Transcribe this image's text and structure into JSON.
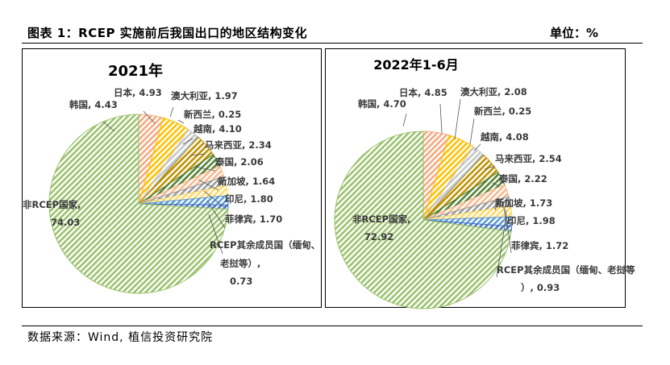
{
  "header": {
    "title": "图表 1：RCEP 实施前后我国出口的地区结构变化",
    "unit": "单位：%"
  },
  "footer": {
    "source": "数据来源：Wind, 植信投资研究院"
  },
  "colors": {
    "非RCEP国家": "#9bc26d",
    "韩国": "#f4a981",
    "日本": "#ffc000",
    "澳大利亚": "#c7c7c7",
    "新西兰": "#9dc3e6",
    "越南": "#bf9000",
    "马来西亚": "#548235",
    "泰国": "#f7b98e",
    "新加坡": "#9b9b9b",
    "印尼": "#ffd966",
    "菲律宾": "#5b9bd5",
    "RCEP其余成员国": "#4472c4"
  },
  "chart_data": [
    {
      "type": "pie",
      "title": "2021年",
      "labels": [
        "韩国",
        "日本",
        "澳大利亚",
        "新西兰",
        "越南",
        "马来西亚",
        "泰国",
        "新加坡",
        "印尼",
        "菲律宾",
        "RCEP其余成员国（缅甸、老挝等）",
        "非RCEP国家"
      ],
      "values": [
        4.43,
        4.93,
        1.97,
        0.25,
        4.1,
        2.34,
        2.06,
        1.64,
        1.8,
        1.7,
        0.73,
        74.03
      ],
      "label_text": [
        "韩国, 4.43",
        "日本, 4.93",
        "澳大利亚, 1.97",
        "新西兰, 0.25",
        "越南, 4.10",
        "马来西亚, 2.34",
        "泰国, 2.06",
        "新加坡, 1.64",
        "印尼, 1.80",
        "菲律宾, 1.70",
        "RCEP其余成员国（缅甸、老挝等）, 0.73",
        "非RCEP国家, 74.03"
      ]
    },
    {
      "type": "pie",
      "title": "2022年1-6月",
      "labels": [
        "韩国",
        "日本",
        "澳大利亚",
        "新西兰",
        "越南",
        "马来西亚",
        "泰国",
        "新加坡",
        "印尼",
        "菲律宾",
        "RCEP其余成员国（缅甸、老挝等）",
        "非RCEP国家"
      ],
      "values": [
        4.7,
        4.85,
        2.08,
        0.25,
        4.08,
        2.54,
        2.22,
        1.73,
        1.98,
        1.72,
        0.93,
        72.92
      ],
      "label_text": [
        "韩国, 4.70",
        "日本, 4.85",
        "澳大利亚, 2.08",
        "新西兰, 0.25",
        "越南, 4.08",
        "马来西亚, 2.54",
        "泰国, 2.22",
        "新加坡, 1.73",
        "印尼, 1.98",
        "菲律宾, 1.72",
        "RCEP其余成员国（缅甸、老挝等）, 0.93",
        "非RCEP国家, 72.92"
      ]
    }
  ]
}
